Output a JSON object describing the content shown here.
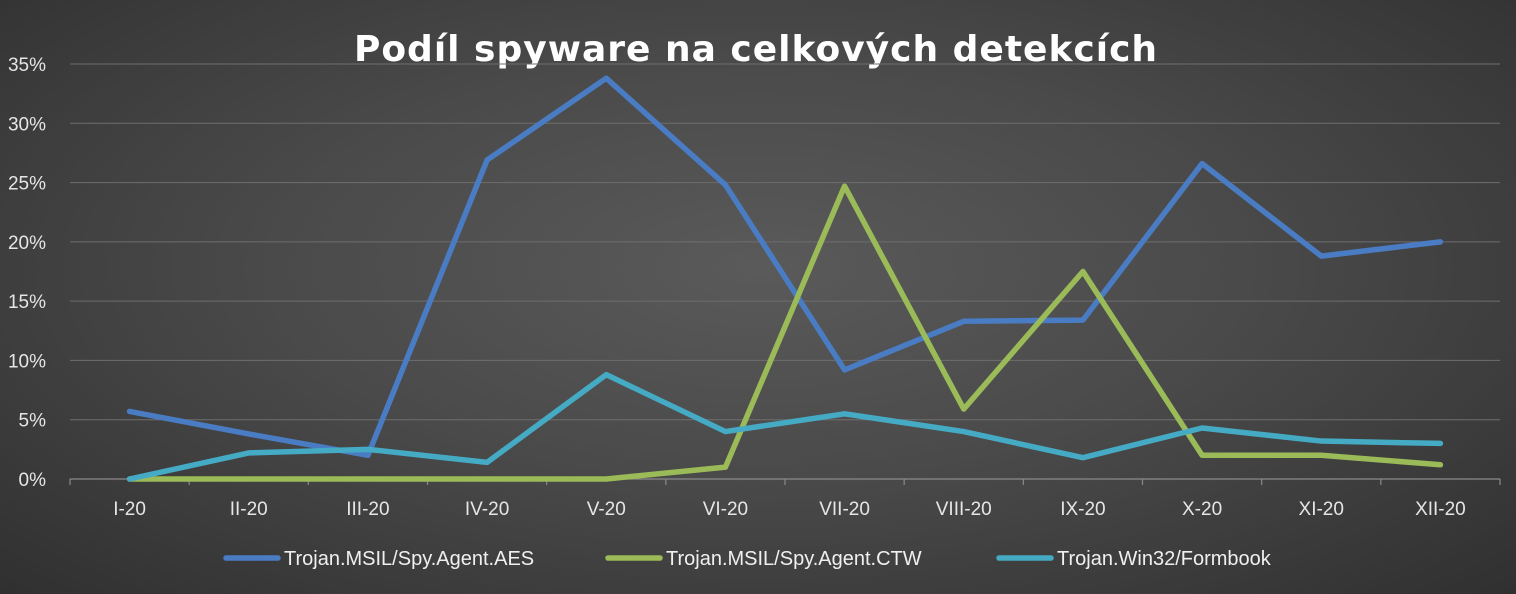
{
  "chart_data": {
    "type": "line",
    "title": "Podíl spyware na celkových detekcích",
    "categories": [
      "I-20",
      "II-20",
      "III-20",
      "IV-20",
      "V-20",
      "VI-20",
      "VII-20",
      "VIII-20",
      "IX-20",
      "X-20",
      "XI-20",
      "XII-20"
    ],
    "ylim": [
      0,
      35
    ],
    "yticks": [
      0,
      5,
      10,
      15,
      20,
      25,
      30,
      35
    ],
    "ytick_labels": [
      "0%",
      "5%",
      "10%",
      "15%",
      "20%",
      "25%",
      "30%",
      "35%"
    ],
    "grid": true,
    "legend_position": "bottom",
    "series": [
      {
        "name": "Trojan.MSIL/Spy.Agent.AES",
        "color": "#4a7cc4",
        "values": [
          5.7,
          3.8,
          2.0,
          26.9,
          33.8,
          24.8,
          9.2,
          13.3,
          13.4,
          26.6,
          18.8,
          20.0
        ]
      },
      {
        "name": "Trojan.MSIL/Spy.Agent.CTW",
        "color": "#9bbb59",
        "values": [
          0.0,
          0.0,
          0.0,
          0.0,
          0.0,
          1.0,
          24.7,
          5.9,
          17.5,
          2.0,
          2.0,
          1.2
        ]
      },
      {
        "name": "Trojan.Win32/Formbook",
        "color": "#45abc4",
        "values": [
          0.0,
          2.2,
          2.5,
          1.4,
          8.8,
          4.0,
          5.5,
          4.0,
          1.8,
          4.3,
          3.2,
          3.0
        ]
      }
    ]
  }
}
